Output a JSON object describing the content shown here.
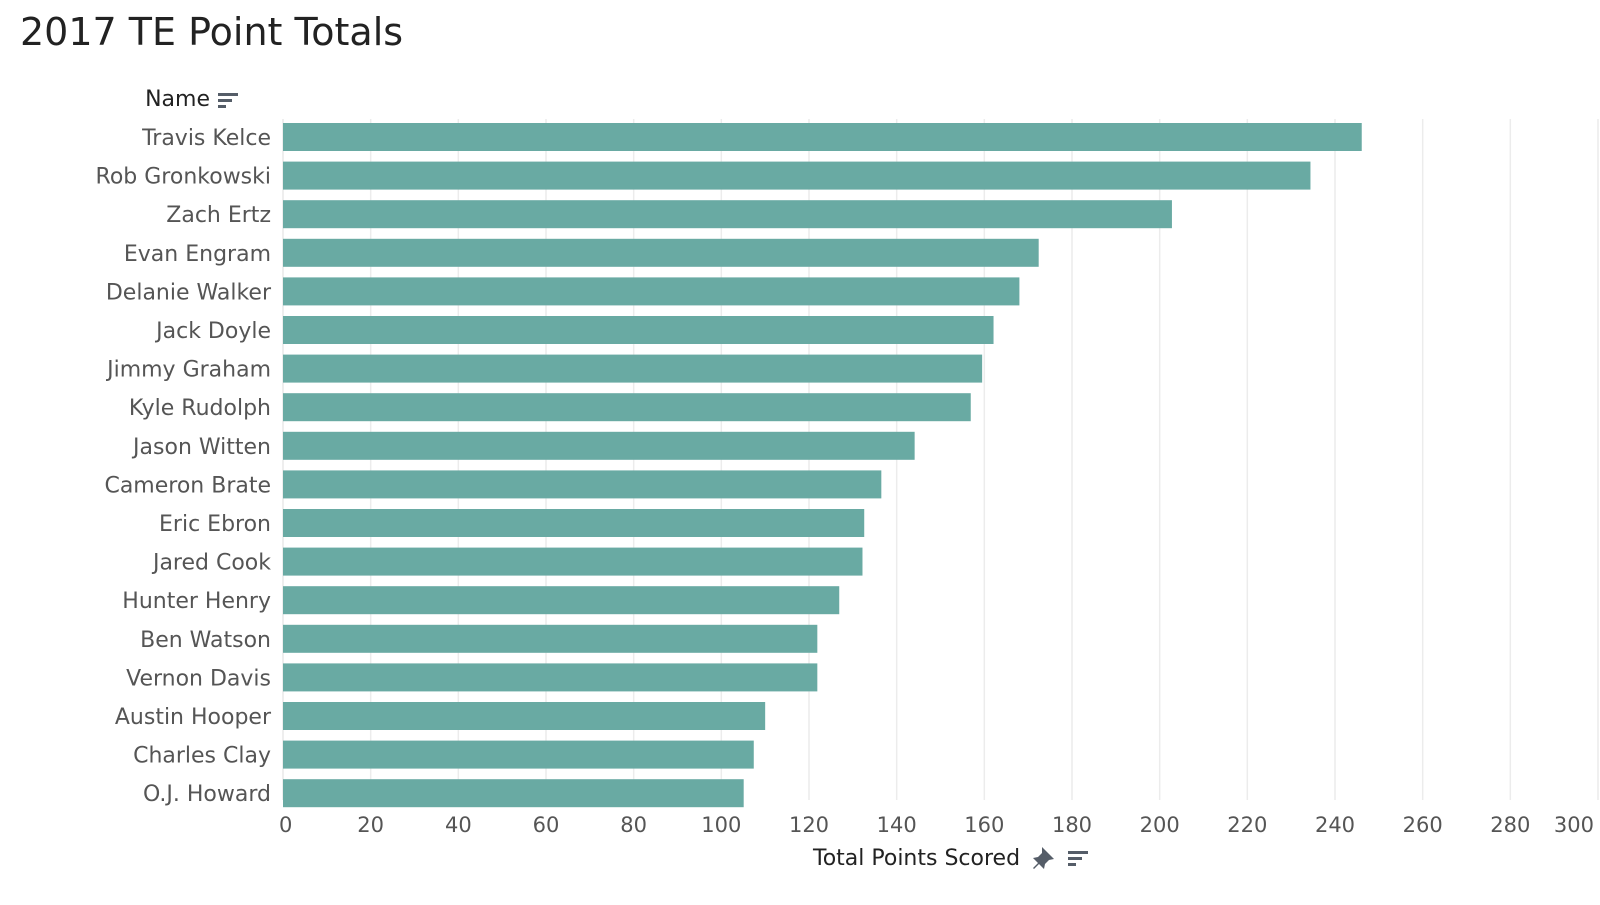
{
  "header": {
    "title": "2017 TE Point Totals",
    "row_field_label": "Name",
    "x_field_label": "Total Points Scored"
  },
  "icons": {
    "row_sort": "sort-descending-icon",
    "pin": "pin-icon",
    "axis_sort": "sort-descending-icon"
  },
  "colors": {
    "bar": "#69aaa3",
    "grid": "#ececec",
    "label": "#555555"
  },
  "chart_data": {
    "type": "bar",
    "orientation": "horizontal",
    "title": "2017 TE Point Totals",
    "xlabel": "Total Points Scored",
    "ylabel": "Name",
    "xlim": [
      0,
      300
    ],
    "xticks": [
      0,
      20,
      40,
      60,
      80,
      100,
      120,
      140,
      160,
      180,
      200,
      220,
      240,
      260,
      280,
      300
    ],
    "grid": true,
    "categories": [
      "Travis Kelce",
      "Rob Gronkowski",
      "Zach Ertz",
      "Evan Engram",
      "Delanie Walker",
      "Jack Doyle",
      "Jimmy Graham",
      "Kyle Rudolph",
      "Jason Witten",
      "Cameron Brate",
      "Eric Ebron",
      "Jared Cook",
      "Hunter Henry",
      "Ben Watson",
      "Vernon Davis",
      "Austin Hooper",
      "Charles Clay",
      "O.J. Howard"
    ],
    "values": [
      246.1,
      234.4,
      202.8,
      172.4,
      168.0,
      162.1,
      159.5,
      156.9,
      144.1,
      136.5,
      132.6,
      132.2,
      126.9,
      121.9,
      121.9,
      110.0,
      107.4,
      105.1
    ]
  }
}
